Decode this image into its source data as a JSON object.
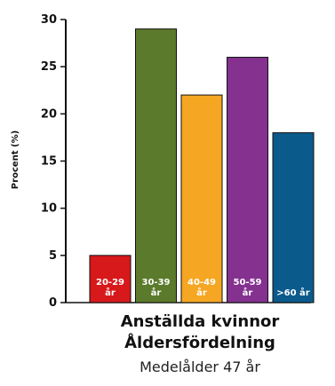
{
  "chart_data": {
    "type": "bar",
    "title_line1": "Anställda kvinnor",
    "title_line2": "Åldersfördelning",
    "subtitle": "Medelålder 47 år",
    "ylabel": "Procent (%)",
    "xlabel": "",
    "ylim": [
      0,
      30
    ],
    "yticks": [
      0,
      5,
      10,
      15,
      20,
      25,
      30
    ],
    "grid": false,
    "categories": [
      [
        "20-29",
        "år"
      ],
      [
        "30-39",
        "år"
      ],
      [
        "40-49",
        "år"
      ],
      [
        "50-59",
        "år"
      ],
      [
        ">60 år"
      ]
    ],
    "values": [
      5,
      29,
      22,
      26,
      18
    ],
    "colors": [
      "#d7191c",
      "#5b7a2b",
      "#f5a623",
      "#84318f",
      "#0b5a8c"
    ]
  }
}
